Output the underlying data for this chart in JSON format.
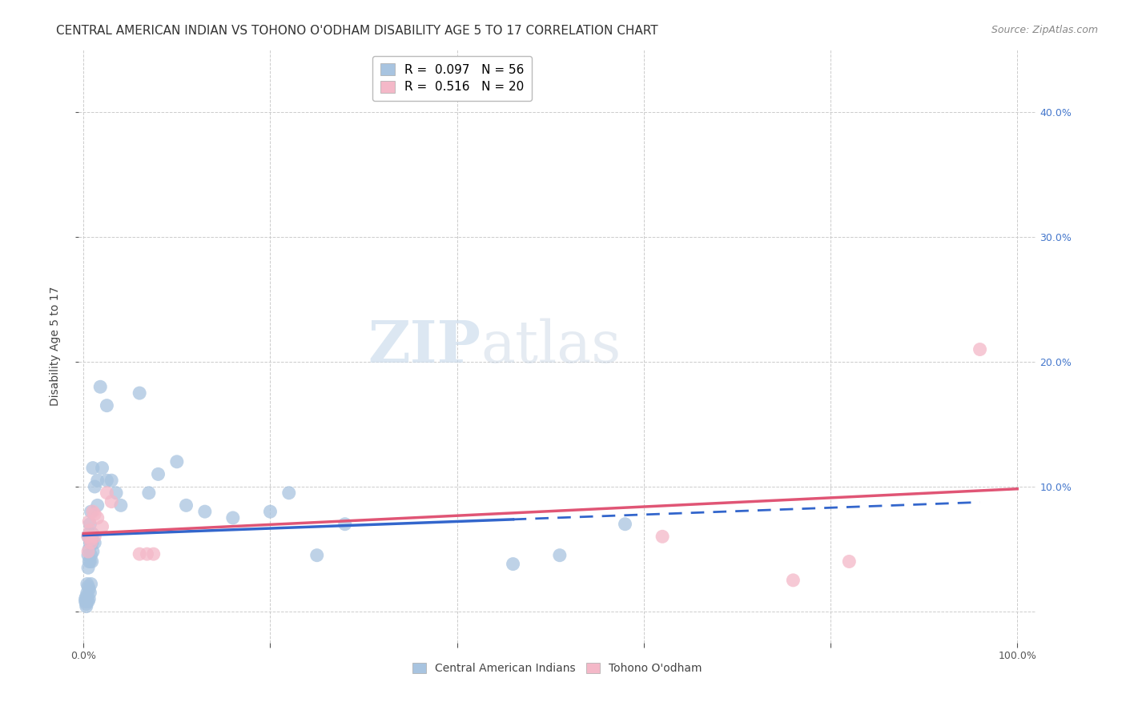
{
  "title": "CENTRAL AMERICAN INDIAN VS TOHONO O'ODHAM DISABILITY AGE 5 TO 17 CORRELATION CHART",
  "source": "Source: ZipAtlas.com",
  "ylabel": "Disability Age 5 to 17",
  "xlabel": "",
  "xlim": [
    -0.005,
    1.02
  ],
  "ylim": [
    -0.025,
    0.45
  ],
  "xticks": [
    0.0,
    0.2,
    0.4,
    0.6,
    0.8,
    1.0
  ],
  "xticklabels": [
    "0.0%",
    "",
    "",
    "",
    "",
    "100.0%"
  ],
  "yticks": [
    0.0,
    0.1,
    0.2,
    0.3,
    0.4
  ],
  "blue_color": "#a8c4e0",
  "pink_color": "#f4b8c8",
  "blue_line_color": "#3366cc",
  "pink_line_color": "#e05575",
  "blue_scatter": [
    [
      0.002,
      0.01
    ],
    [
      0.002,
      0.008
    ],
    [
      0.003,
      0.012
    ],
    [
      0.003,
      0.006
    ],
    [
      0.003,
      0.004
    ],
    [
      0.004,
      0.01
    ],
    [
      0.004,
      0.015
    ],
    [
      0.004,
      0.022
    ],
    [
      0.005,
      0.06
    ],
    [
      0.005,
      0.045
    ],
    [
      0.005,
      0.035
    ],
    [
      0.005,
      0.02
    ],
    [
      0.005,
      0.008
    ],
    [
      0.006,
      0.062
    ],
    [
      0.006,
      0.05
    ],
    [
      0.006,
      0.04
    ],
    [
      0.006,
      0.018
    ],
    [
      0.006,
      0.01
    ],
    [
      0.007,
      0.07
    ],
    [
      0.007,
      0.055
    ],
    [
      0.007,
      0.04
    ],
    [
      0.007,
      0.015
    ],
    [
      0.008,
      0.08
    ],
    [
      0.008,
      0.06
    ],
    [
      0.008,
      0.045
    ],
    [
      0.008,
      0.022
    ],
    [
      0.009,
      0.055
    ],
    [
      0.009,
      0.04
    ],
    [
      0.01,
      0.062
    ],
    [
      0.01,
      0.048
    ],
    [
      0.01,
      0.115
    ],
    [
      0.012,
      0.055
    ],
    [
      0.012,
      0.1
    ],
    [
      0.015,
      0.105
    ],
    [
      0.015,
      0.085
    ],
    [
      0.018,
      0.18
    ],
    [
      0.02,
      0.115
    ],
    [
      0.025,
      0.165
    ],
    [
      0.025,
      0.105
    ],
    [
      0.03,
      0.105
    ],
    [
      0.035,
      0.095
    ],
    [
      0.04,
      0.085
    ],
    [
      0.06,
      0.175
    ],
    [
      0.07,
      0.095
    ],
    [
      0.08,
      0.11
    ],
    [
      0.1,
      0.12
    ],
    [
      0.11,
      0.085
    ],
    [
      0.13,
      0.08
    ],
    [
      0.16,
      0.075
    ],
    [
      0.2,
      0.08
    ],
    [
      0.22,
      0.095
    ],
    [
      0.25,
      0.045
    ],
    [
      0.28,
      0.07
    ],
    [
      0.46,
      0.038
    ],
    [
      0.51,
      0.045
    ],
    [
      0.58,
      0.07
    ]
  ],
  "pink_scatter": [
    [
      0.005,
      0.06
    ],
    [
      0.005,
      0.048
    ],
    [
      0.006,
      0.072
    ],
    [
      0.007,
      0.065
    ],
    [
      0.008,
      0.058
    ],
    [
      0.008,
      0.055
    ],
    [
      0.01,
      0.08
    ],
    [
      0.012,
      0.078
    ],
    [
      0.012,
      0.06
    ],
    [
      0.015,
      0.075
    ],
    [
      0.02,
      0.068
    ],
    [
      0.025,
      0.095
    ],
    [
      0.03,
      0.088
    ],
    [
      0.06,
      0.046
    ],
    [
      0.068,
      0.046
    ],
    [
      0.075,
      0.046
    ],
    [
      0.62,
      0.06
    ],
    [
      0.76,
      0.025
    ],
    [
      0.82,
      0.04
    ],
    [
      0.96,
      0.21
    ]
  ],
  "watermark_zip": "ZIP",
  "watermark_atlas": "atlas",
  "background_color": "#ffffff",
  "grid_color": "#cccccc",
  "title_fontsize": 11,
  "axis_label_fontsize": 10,
  "tick_fontsize": 9,
  "legend_fontsize": 11,
  "legend_r1": "R =  0.097",
  "legend_n1": "N = 56",
  "legend_r2": "R =  0.516",
  "legend_n2": "N = 20"
}
